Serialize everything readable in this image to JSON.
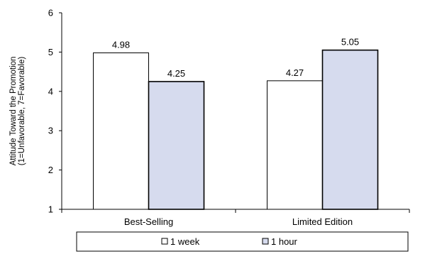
{
  "chart_data": {
    "type": "bar",
    "categories": [
      "Best-Selling",
      "Limited Edition"
    ],
    "series": [
      {
        "name": "1 week",
        "values": [
          4.98,
          4.27
        ],
        "value_labels": [
          "4.98",
          "4.27"
        ],
        "color": "#ffffff"
      },
      {
        "name": "1 hour",
        "values": [
          4.25,
          5.05
        ],
        "value_labels": [
          "4.25",
          "5.05"
        ],
        "color": "#d6dbee"
      }
    ],
    "ylabel_lines": [
      "Attitude Toward the Promotion",
      "(1=Unfavorable, 7=Favorable)"
    ],
    "ylim": [
      1,
      6
    ],
    "yticks": [
      "1",
      "2",
      "3",
      "4",
      "5",
      "6"
    ],
    "grid": false,
    "legend_position": "bottom"
  }
}
